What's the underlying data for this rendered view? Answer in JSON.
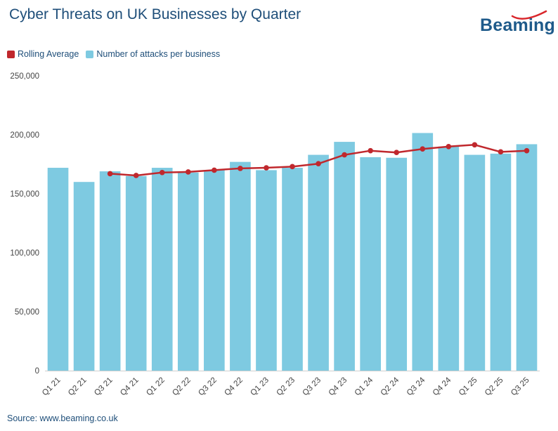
{
  "header": {
    "title": "Cyber Threats on UK Businesses by Quarter",
    "logo_text": "Beaming"
  },
  "legend": {
    "items": [
      {
        "label": "Rolling Average",
        "color": "#c0282d"
      },
      {
        "label": "Number of attacks per business",
        "color": "#7ecae1"
      }
    ]
  },
  "footer": {
    "source": "Source: www.beaming.co.uk"
  },
  "colors": {
    "bar": "#7ecae1",
    "line": "#c0282d",
    "title": "#1e4e79",
    "logo": "#1e5a8a",
    "logo_swoosh": "#d9262b"
  },
  "chart_data": {
    "type": "bar",
    "title": "Cyber Threats on UK Businesses by Quarter",
    "xlabel": "",
    "ylabel": "",
    "ylim": [
      0,
      250000
    ],
    "yticks": [
      0,
      50000,
      100000,
      150000,
      200000,
      250000
    ],
    "ytick_labels": [
      "0",
      "50,000",
      "100,000",
      "150,000",
      "200,000",
      "250,000"
    ],
    "grid": false,
    "legend_position": "top-left",
    "categories": [
      "Q1 21",
      "Q2 21",
      "Q3 21",
      "Q4 21",
      "Q1 22",
      "Q2 22",
      "Q3 22",
      "Q4 22",
      "Q1 23",
      "Q2 23",
      "Q3 23",
      "Q4 23",
      "Q1 24",
      "Q2 24",
      "Q3 24",
      "Q4 24",
      "Q1 25",
      "Q2 25",
      "Q3 25"
    ],
    "series": [
      {
        "name": "Number of attacks per business",
        "type": "bar",
        "values": [
          172000,
          160000,
          169000,
          165000,
          172000,
          168000,
          170000,
          177000,
          170000,
          172000,
          183000,
          194000,
          181000,
          180500,
          201500,
          190000,
          183000,
          184000,
          192000
        ]
      },
      {
        "name": "Rolling Average",
        "type": "line",
        "values": [
          null,
          null,
          167000,
          165500,
          168000,
          168500,
          170000,
          171500,
          172000,
          173000,
          175500,
          183000,
          186500,
          185000,
          188000,
          190000,
          191500,
          185500,
          186500
        ]
      }
    ]
  }
}
